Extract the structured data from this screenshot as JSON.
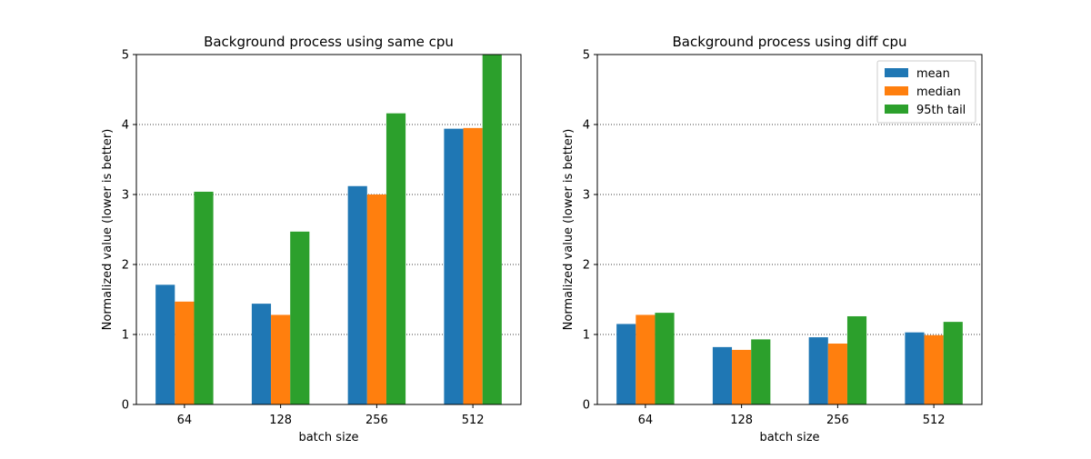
{
  "chart_data": [
    {
      "type": "bar",
      "title": "Background process using same cpu",
      "xlabel": "batch size",
      "ylabel": "Normalized value (lower is better)",
      "categories": [
        "64",
        "128",
        "256",
        "512"
      ],
      "ylim": [
        0,
        5
      ],
      "yticks": [
        "0",
        "1",
        "2",
        "3",
        "4",
        "5"
      ],
      "grid": "horizontal dotted",
      "series": [
        {
          "name": "mean",
          "color": "#1f77b4",
          "values": [
            1.71,
            1.44,
            3.12,
            3.94
          ]
        },
        {
          "name": "median",
          "color": "#ff7f0e",
          "values": [
            1.47,
            1.28,
            3.0,
            3.95
          ]
        },
        {
          "name": "95th tail",
          "color": "#2ca02c",
          "values": [
            3.04,
            2.47,
            4.16,
            5.0
          ]
        }
      ]
    },
    {
      "type": "bar",
      "title": "Background process using diff cpu",
      "xlabel": "batch size",
      "ylabel": "Normalized value (lower is better)",
      "categories": [
        "64",
        "128",
        "256",
        "512"
      ],
      "ylim": [
        0,
        5
      ],
      "yticks": [
        "0",
        "1",
        "2",
        "3",
        "4",
        "5"
      ],
      "grid": "horizontal dotted",
      "legend": "top-right",
      "series": [
        {
          "name": "mean",
          "color": "#1f77b4",
          "values": [
            1.15,
            0.82,
            0.96,
            1.03
          ]
        },
        {
          "name": "median",
          "color": "#ff7f0e",
          "values": [
            1.28,
            0.78,
            0.87,
            0.99
          ]
        },
        {
          "name": "95th tail",
          "color": "#2ca02c",
          "values": [
            1.31,
            0.93,
            1.26,
            1.18
          ]
        }
      ]
    }
  ]
}
